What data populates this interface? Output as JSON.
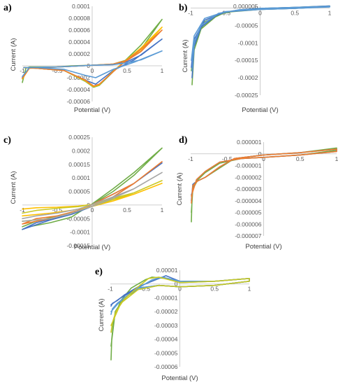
{
  "chart_data": [
    {
      "id": "a",
      "panel_label": "a)",
      "type": "line",
      "xlabel": "Potential (V)",
      "ylabel": "Current (A)",
      "xlim": [
        -1,
        1
      ],
      "ylim": [
        -6e-05,
        0.0001
      ],
      "x_ticks": [
        "-1",
        "-0.5",
        "0",
        "0.5",
        "1"
      ],
      "y_ticks": [
        "0.0001",
        "0.00008",
        "0.00006",
        "0.00004",
        "0.00002",
        "0",
        "-0.00002",
        "-0.00004",
        "-0.00006"
      ],
      "x_tick_values": [
        -1,
        -0.5,
        0,
        0.5,
        1
      ],
      "y_tick_values": [
        0.0001,
        8e-05,
        6e-05,
        4e-05,
        2e-05,
        0,
        -2e-05,
        -4e-05,
        -6e-05
      ],
      "series": [
        {
          "color": "#70AD47",
          "x": [
            -1,
            -0.95,
            -0.9,
            -0.5,
            -0.3,
            0,
            0.3,
            0.5,
            0.7,
            1,
            1,
            0.7,
            0.5,
            0.3,
            0.1,
            0.02,
            -0.1,
            -0.4,
            -0.8,
            -0.98
          ],
          "y": [
            -2.8e-05,
            -4e-06,
            -2e-06,
            -2e-06,
            0,
            1e-06,
            3e-06,
            1e-05,
            2.8e-05,
            7.8e-05,
            7.8e-05,
            3.5e-05,
            1.2e-05,
            -1e-05,
            -3.3e-05,
            -3.6e-05,
            -2.6e-05,
            -8e-06,
            -4e-06,
            -3e-06
          ]
        },
        {
          "color": "#4472C4",
          "x": [
            -1,
            -0.9,
            -0.5,
            0,
            0.3,
            0.5,
            0.7,
            1,
            1,
            0.6,
            0.3,
            0.05,
            -0.1,
            -0.4,
            -0.8,
            -0.98
          ],
          "y": [
            -2e-05,
            -3e-06,
            -2e-06,
            1e-06,
            2e-06,
            7e-06,
            1.8e-05,
            4.5e-05,
            4.5e-05,
            1e-05,
            -8e-06,
            -3.1e-05,
            -2.4e-05,
            -8e-06,
            -4e-06,
            -3e-06
          ]
        },
        {
          "color": "#FFC000",
          "x": [
            -1,
            -0.9,
            -0.5,
            0,
            0.3,
            0.5,
            0.7,
            1,
            1,
            0.7,
            0.5,
            0.3,
            0.1,
            0.02,
            -0.1,
            -0.4,
            -0.8,
            -0.98
          ],
          "y": [
            -2.2e-05,
            -4e-06,
            -2e-06,
            1e-06,
            3e-06,
            9e-06,
            2.5e-05,
            6.5e-05,
            6.5e-05,
            3e-05,
            1.1e-05,
            -9e-06,
            -3.2e-05,
            -3.5e-05,
            -2.5e-05,
            -8e-06,
            -4e-06,
            -3e-06
          ]
        },
        {
          "color": "#ED7D31",
          "x": [
            -1,
            -0.9,
            -0.5,
            0,
            0.3,
            0.5,
            0.7,
            1,
            1,
            0.7,
            0.5,
            0.3,
            0.1,
            0.02,
            -0.1,
            -0.4,
            -0.8,
            -0.98
          ],
          "y": [
            -2.1e-05,
            -4e-06,
            -2e-06,
            1e-06,
            3e-06,
            9e-06,
            2.4e-05,
            6e-05,
            6e-05,
            2.8e-05,
            1e-05,
            -1e-05,
            -3.1e-05,
            -3.4e-05,
            -2.4e-05,
            -8e-06,
            -4e-06,
            -3e-06
          ]
        },
        {
          "color": "#5B9BD5",
          "x": [
            -1,
            -0.9,
            -0.5,
            0,
            0.3,
            0.5,
            0.7,
            1,
            1,
            0.6,
            0.3,
            0.05,
            -0.1,
            -0.4,
            -0.8,
            -0.98
          ],
          "y": [
            -1.8e-05,
            -3e-06,
            -2e-06,
            1e-06,
            2e-06,
            5e-06,
            1e-05,
            2.5e-05,
            2.5e-05,
            6e-06,
            -6e-06,
            -2e-05,
            -1.6e-05,
            -6e-06,
            -3e-06,
            -3e-06
          ]
        }
      ]
    },
    {
      "id": "b",
      "panel_label": "b)",
      "type": "line",
      "xlabel": "Potential (V)",
      "ylabel": "Current (A)",
      "xlim": [
        -1,
        1
      ],
      "ylim": [
        -0.00025,
        5e-06
      ],
      "x_ticks": [
        "-1",
        "-0.5",
        "0",
        "0.5",
        "1"
      ],
      "y_ticks": [
        "0.000005",
        "0",
        "-0.00005",
        "-0.0001",
        "-0.00015",
        "-0.0002",
        "-0.00025"
      ],
      "x_tick_values": [
        -1,
        -0.5,
        0,
        0.5,
        1
      ],
      "y_tick_values": [
        5e-06,
        0,
        -5e-05,
        -0.0001,
        -0.00015,
        -0.0002,
        -0.00025
      ],
      "series": [
        {
          "color": "#70AD47",
          "x": [
            -0.98,
            -0.95,
            -0.85,
            -0.6,
            -0.3,
            0,
            0.5,
            1,
            1,
            0.5,
            0,
            -0.5,
            -0.8,
            -0.95,
            -0.99
          ],
          "y": [
            -0.00022,
            -0.00012,
            -6e-05,
            -1.8e-05,
            -6e-06,
            -1e-06,
            2e-06,
            6e-06,
            4e-06,
            -1e-06,
            -4e-06,
            -1.2e-05,
            -4e-05,
            -0.0001,
            -0.00018
          ]
        },
        {
          "color": "#4472C4",
          "x": [
            -0.98,
            -0.95,
            -0.85,
            -0.6,
            -0.3,
            0,
            0.5,
            1,
            1,
            0.5,
            0,
            -0.5,
            -0.8,
            -0.95,
            -0.99
          ],
          "y": [
            -0.0002,
            -0.00011,
            -5.5e-05,
            -1.6e-05,
            -5e-06,
            -1e-06,
            2e-06,
            6e-06,
            4e-06,
            -1e-06,
            -4e-06,
            -1.1e-05,
            -3.5e-05,
            -9e-05,
            -0.00017
          ]
        },
        {
          "color": "#5B9BD5",
          "x": [
            -0.98,
            -0.95,
            -0.85,
            -0.6,
            -0.3,
            0,
            0.5,
            1,
            1,
            0.5,
            0,
            -0.5,
            -0.8,
            -0.95,
            -0.99
          ],
          "y": [
            -0.00018,
            -0.0001,
            -5e-05,
            -1.5e-05,
            -5e-06,
            -1e-06,
            2e-06,
            5e-06,
            3e-06,
            -1e-06,
            -4e-06,
            -1e-05,
            -3e-05,
            -8e-05,
            -0.00015
          ]
        }
      ]
    },
    {
      "id": "c",
      "panel_label": "c)",
      "type": "line",
      "xlabel": "Potential (V)",
      "ylabel": "Current (A)",
      "xlim": [
        -1,
        1
      ],
      "ylim": [
        -0.00015,
        0.00025
      ],
      "x_ticks": [
        "-1",
        "-0.5",
        "0",
        "0.5",
        "1"
      ],
      "y_ticks": [
        "0.00025",
        "0.0002",
        "0.00015",
        "0.0001",
        "0.00005",
        "0",
        "-0.00005",
        "-0.0001",
        "-0.00015"
      ],
      "x_tick_values": [
        -1,
        -0.5,
        0,
        0.5,
        1
      ],
      "y_tick_values": [
        0.00025,
        0.0002,
        0.00015,
        0.0001,
        5e-05,
        0,
        -5e-05,
        -0.0001,
        -0.00015
      ],
      "series": [
        {
          "color": "#70AD47",
          "x": [
            -1,
            -0.8,
            -0.5,
            -0.2,
            0,
            0.3,
            0.6,
            1,
            1,
            0.6,
            0.3,
            0,
            -0.3,
            -0.6,
            -0.9,
            -1
          ],
          "y": [
            -8e-05,
            -6e-05,
            -4e-05,
            -2e-05,
            2e-06,
            5e-05,
            0.00011,
            0.00021,
            0.00021,
            0.00012,
            6e-05,
            4e-06,
            -4.5e-05,
            -6.5e-05,
            -8e-05,
            -9e-05
          ]
        },
        {
          "color": "#4472C4",
          "x": [
            -1,
            -0.8,
            -0.5,
            -0.2,
            0,
            0.3,
            0.6,
            1,
            1,
            0.6,
            0.3,
            0,
            -0.3,
            -0.6,
            -1
          ],
          "y": [
            -9e-05,
            -6.5e-05,
            -4.5e-05,
            -2e-05,
            2e-06,
            4e-05,
            8e-05,
            0.000155,
            0.000155,
            8e-05,
            3e-05,
            -5e-06,
            -3.5e-05,
            -5.5e-05,
            -9e-05
          ]
        },
        {
          "color": "#ED7D31",
          "x": [
            -1,
            -0.8,
            -0.5,
            -0.2,
            0,
            0.3,
            0.6,
            1,
            1,
            0.6,
            0.3,
            0,
            -0.3,
            -0.6,
            -1
          ],
          "y": [
            -7e-05,
            -5e-05,
            -4e-05,
            -2e-05,
            2e-06,
            4e-05,
            8e-05,
            0.00016,
            0.00016,
            8e-05,
            3e-05,
            -5e-06,
            -3e-05,
            -5e-05,
            -7e-05
          ]
        },
        {
          "color": "#FFC000",
          "x": [
            -1,
            -0.8,
            -0.5,
            -0.2,
            0,
            0.3,
            0.6,
            1,
            1,
            0.6,
            0.3,
            0,
            -0.3,
            -0.6,
            -1
          ],
          "y": [
            -1.5e-05,
            -1e-05,
            -8e-06,
            -4e-06,
            2e-06,
            2e-05,
            4e-05,
            8e-05,
            8e-05,
            4e-05,
            1.5e-05,
            -5e-06,
            -2e-05,
            -3e-05,
            -4e-05
          ]
        },
        {
          "color": "#C9C925",
          "x": [
            -1,
            -0.8,
            -0.5,
            -0.2,
            0,
            0.3,
            0.6,
            1,
            1,
            0.6,
            0.3,
            0,
            -0.3,
            -0.6,
            -1
          ],
          "y": [
            -3e-05,
            -2e-05,
            -1.2e-05,
            -6e-06,
            2e-06,
            2.5e-05,
            4.5e-05,
            9e-05,
            9e-05,
            4.5e-05,
            2e-05,
            -5e-06,
            -3e-05,
            -5e-05,
            -6e-05
          ]
        },
        {
          "color": "#A5A5A5",
          "x": [
            -1,
            -0.8,
            -0.5,
            -0.2,
            0,
            0.3,
            0.6,
            1,
            1,
            0.6,
            0.3,
            0,
            -0.3,
            -0.6,
            -1
          ],
          "y": [
            -5e-05,
            -4e-05,
            -3e-05,
            -1.5e-05,
            2e-06,
            3e-05,
            6e-05,
            0.00012,
            0.00012,
            6e-05,
            2.5e-05,
            -5e-06,
            -3e-05,
            -5e-05,
            -6e-05
          ]
        }
      ]
    },
    {
      "id": "d",
      "panel_label": "d)",
      "type": "line",
      "xlabel": "Potential (V)",
      "ylabel": "Current (A)",
      "xlim": [
        -1,
        1
      ],
      "ylim": [
        -7e-06,
        1e-06
      ],
      "x_ticks": [
        "-1",
        "-0.5",
        "0",
        "0.5",
        "1"
      ],
      "y_ticks": [
        "0.000001",
        "0",
        "-0.000001",
        "-0.000002",
        "-0.000003",
        "-0.000004",
        "-0.000005",
        "-0.000006",
        "-0.000007"
      ],
      "x_tick_values": [
        -1,
        -0.5,
        0,
        0.5,
        1
      ],
      "y_tick_values": [
        1e-06,
        0,
        -1e-06,
        -2e-06,
        -3e-06,
        -4e-06,
        -5e-06,
        -6e-06,
        -7e-06
      ],
      "series": [
        {
          "color": "#70AD47",
          "x": [
            -0.99,
            -0.98,
            -0.95,
            -0.9,
            -0.8,
            -0.6,
            -0.4,
            0,
            0.5,
            1,
            1,
            0.5,
            0,
            -0.3,
            -0.6,
            -0.8,
            -0.9,
            -0.97,
            -0.99
          ],
          "y": [
            -5.8e-06,
            -3.5e-06,
            -2.5e-06,
            -2.3e-06,
            -2e-06,
            -1.2e-06,
            -4e-07,
            -1e-07,
            1e-07,
            5e-07,
            3e-07,
            -1e-07,
            -3e-07,
            -4e-07,
            -8e-07,
            -1.6e-06,
            -2.2e-06,
            -3e-06,
            -5e-06
          ]
        },
        {
          "color": "#4472C4",
          "x": [
            -0.99,
            -0.97,
            -0.9,
            -0.8,
            -0.6,
            -0.4,
            0,
            0.5,
            1,
            1,
            0.5,
            0,
            -0.3,
            -0.6,
            -0.8,
            -0.92,
            -0.99
          ],
          "y": [
            -4e-06,
            -2.6e-06,
            -2.3e-06,
            -2e-06,
            -1.1e-06,
            -4e-07,
            -1e-07,
            1e-07,
            4e-07,
            2e-07,
            -1e-07,
            -3e-07,
            -4e-07,
            -7e-07,
            -1.5e-06,
            -2.2e-06,
            -3.5e-06
          ]
        },
        {
          "color": "#ED7D31",
          "x": [
            -0.99,
            -0.97,
            -0.9,
            -0.8,
            -0.6,
            -0.4,
            0,
            0.5,
            1,
            1,
            0.5,
            0,
            -0.3,
            -0.6,
            -0.8,
            -0.92,
            -0.99
          ],
          "y": [
            -4.2e-06,
            -2.7e-06,
            -2.3e-06,
            -2e-06,
            -1.1e-06,
            -4e-07,
            -1e-07,
            1e-07,
            4e-07,
            2e-07,
            -1e-07,
            -3e-07,
            -4e-07,
            -7e-07,
            -1.5e-06,
            -2.2e-06,
            -3.6e-06
          ]
        }
      ]
    },
    {
      "id": "e",
      "panel_label": "e)",
      "type": "line",
      "xlabel": "Potential (V)",
      "ylabel": "Current (A)",
      "xlim": [
        -1,
        1
      ],
      "ylim": [
        -6e-05,
        1e-05
      ],
      "x_ticks": [
        "-1",
        "-0.5",
        "0",
        "0.5",
        "1"
      ],
      "y_ticks": [
        "0.00001",
        "0",
        "-0.00001",
        "-0.00002",
        "-0.00003",
        "-0.00004",
        "-0.00005",
        "-0.00006"
      ],
      "x_tick_values": [
        -1,
        -0.5,
        0,
        0.5,
        1
      ],
      "y_tick_values": [
        1e-05,
        0,
        -1e-05,
        -2e-05,
        -3e-05,
        -4e-05,
        -5e-05,
        -6e-05
      ],
      "series": [
        {
          "color": "#70AD47",
          "x": [
            -0.99,
            -0.98,
            -0.95,
            -0.85,
            -0.7,
            -0.5,
            -0.4,
            -0.2,
            0,
            0.5,
            1,
            1,
            0.5,
            0,
            -0.3,
            -0.6,
            -0.8,
            -0.93,
            -0.99
          ],
          "y": [
            -5.5e-05,
            -4e-05,
            -2.5e-05,
            -1.2e-05,
            -3e-06,
            3e-06,
            5e-06,
            4e-06,
            1e-06,
            2e-06,
            4e-06,
            2e-06,
            -1e-06,
            -2e-06,
            -1e-06,
            -4e-06,
            -1e-05,
            -2e-05,
            -4.5e-05
          ]
        },
        {
          "color": "#4472C4",
          "x": [
            -0.99,
            -0.97,
            -0.9,
            -0.8,
            -0.6,
            -0.4,
            -0.2,
            0,
            0.5,
            1,
            1,
            0.5,
            0,
            -0.3,
            -0.6,
            -0.85,
            -0.99
          ],
          "y": [
            -1.6e-05,
            -1.4e-05,
            -1.2e-05,
            -8e-06,
            -2e-06,
            2e-06,
            6e-06,
            2e-06,
            2e-06,
            4e-06,
            2e-06,
            -1e-06,
            -2e-06,
            -1e-06,
            -3e-06,
            -1e-05,
            -1.5e-05
          ]
        },
        {
          "color": "#5B9BD5",
          "x": [
            -0.99,
            -0.97,
            -0.9,
            -0.8,
            -0.6,
            -0.4,
            -0.25,
            0,
            0.5,
            1,
            1,
            0.5,
            0,
            -0.3,
            -0.6,
            -0.85,
            -0.99
          ],
          "y": [
            -2.2e-05,
            -1.8e-05,
            -1.4e-05,
            -1e-05,
            -3e-06,
            3e-06,
            5e-06,
            2e-06,
            2e-06,
            4e-06,
            2e-06,
            -1e-06,
            -2e-06,
            -1e-06,
            -3e-06,
            -1.2e-05,
            -2e-05
          ]
        },
        {
          "color": "#C9C925",
          "x": [
            -0.99,
            -0.97,
            -0.92,
            -0.8,
            -0.6,
            -0.45,
            -0.3,
            0,
            0.5,
            1,
            1,
            0.5,
            0,
            -0.3,
            -0.6,
            -0.85,
            -0.99
          ],
          "y": [
            -3.5e-05,
            -2.8e-05,
            -2e-05,
            -1.1e-05,
            -2e-06,
            4e-06,
            5e-06,
            1e-06,
            2e-06,
            4e-06,
            2e-06,
            -1e-06,
            -2e-06,
            -1e-06,
            -4e-06,
            -1.4e-05,
            -3e-05
          ]
        }
      ]
    }
  ]
}
